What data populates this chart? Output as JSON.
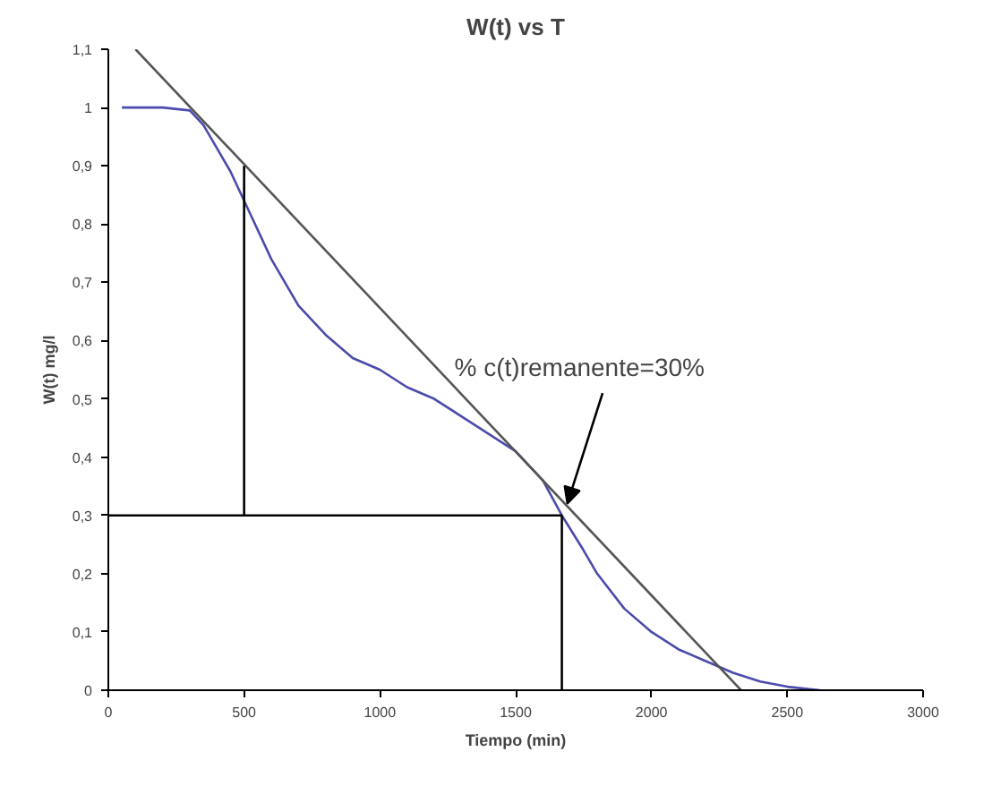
{
  "chart_data": {
    "type": "line",
    "title": "W(t) vs T",
    "xlabel": "Tiempo (min)",
    "ylabel": "W(t) mg/l",
    "xlim": [
      0,
      3000
    ],
    "ylim": [
      0,
      1.1
    ],
    "xticks": [
      0,
      500,
      1000,
      1500,
      2000,
      2500,
      3000
    ],
    "yticks": [
      0,
      {
        "value": 0.1,
        "label": "0,1"
      },
      {
        "value": 0.2,
        "label": "0,2"
      },
      {
        "value": 0.3,
        "label": "0,3"
      },
      {
        "value": 0.4,
        "label": "0,4"
      },
      {
        "value": 0.5,
        "label": "0,5"
      },
      {
        "value": 0.6,
        "label": "0,6"
      },
      {
        "value": 0.7,
        "label": "0,7"
      },
      {
        "value": 0.8,
        "label": "0,8"
      },
      {
        "value": 0.9,
        "label": "0,9"
      },
      1,
      {
        "value": 1.1,
        "label": "1,1"
      }
    ],
    "grid": false,
    "marker": "none",
    "line_style": "solid",
    "series": [
      {
        "color": "#4b4bab",
        "x": [
          50,
          200,
          300,
          350,
          400,
          450,
          500,
          600,
          700,
          800,
          900,
          1000,
          1100,
          1200,
          1300,
          1400,
          1500,
          1600,
          1670,
          1750,
          1800,
          1900,
          2000,
          2100,
          2200,
          2300,
          2400,
          2500,
          2620
        ],
        "values": [
          1.0,
          1.0,
          0.995,
          0.97,
          0.93,
          0.89,
          0.84,
          0.74,
          0.66,
          0.61,
          0.57,
          0.55,
          0.52,
          0.5,
          0.47,
          0.44,
          0.41,
          0.36,
          0.3,
          0.24,
          0.2,
          0.14,
          0.1,
          0.07,
          0.05,
          0.03,
          0.015,
          0.006,
          0
        ]
      },
      {
        "color": "#555555",
        "x": [
          100,
          2330
        ],
        "values": [
          1.1,
          0
        ]
      },
      {
        "color": "#000000",
        "x": [
          500,
          500
        ],
        "values": [
          0.3,
          0.9
        ]
      },
      {
        "color": "#000000",
        "x": [
          0,
          1670
        ],
        "values": [
          0.3,
          0.3
        ]
      },
      {
        "color": "#000000",
        "x": [
          1670,
          1670
        ],
        "values": [
          0,
          0.3
        ]
      }
    ],
    "annotations": [
      {
        "text": "% c(t)remanente=30%",
        "x": 1670,
        "y": 0.3
      }
    ]
  }
}
